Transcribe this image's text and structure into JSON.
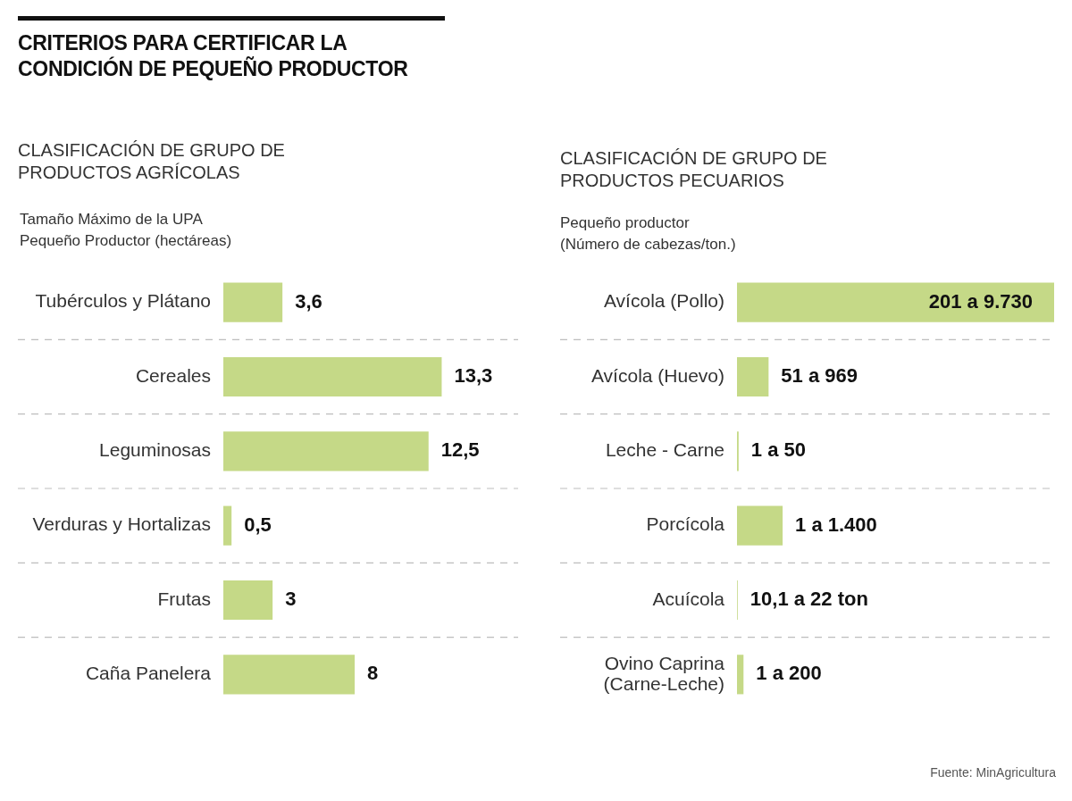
{
  "chart_data": [
    {
      "type": "bar",
      "orientation": "horizontal",
      "title": "CRITERIOS PARA CERTIFICAR LA CONDICIÓN DE PEQUEÑO PRODUCTOR",
      "subtitle": "CLASIFICACIÓN DE GRUPO DE PRODUCTOS AGRÍCOLAS",
      "xlabel": "Tamaño Máximo de la UPA Pequeño Productor (hectáreas)",
      "categories": [
        "Tubérculos y Plátano",
        "Cereales",
        "Leguminosas",
        "Verduras y Hortalizas",
        "Frutas",
        "Caña Panelera"
      ],
      "values": [
        3.6,
        13.3,
        12.5,
        0.5,
        3,
        8
      ],
      "value_labels": [
        "3,6",
        "13,3",
        "12,5",
        "0,5",
        "3",
        "8"
      ],
      "color": "#c5d987",
      "grid": "y",
      "tick_labels": "y"
    },
    {
      "type": "bar",
      "orientation": "horizontal",
      "subtitle": "CLASIFICACIÓN DE GRUPO DE PRODUCTOS PECUARIOS",
      "xlabel": "Pequeño productor (Número de cabezas/ton.)",
      "categories": [
        "Avícola (Pollo)",
        "Avícola (Huevo)",
        "Leche - Carne",
        "Porcícola",
        "Acuícola",
        "Ovino Caprina (Carne-Leche)"
      ],
      "values": [
        9730,
        969,
        50,
        1400,
        22,
        200
      ],
      "value_labels": [
        "201 a 9.730",
        "51 a 969",
        "1 a 50",
        "1 a 1.400",
        "10,1 a 22 ton",
        "1 a 200"
      ],
      "color": "#c5d987",
      "grid": "y",
      "tick_labels": "y",
      "annotations": [
        "Fuente: MinAgricultura"
      ]
    }
  ]
}
